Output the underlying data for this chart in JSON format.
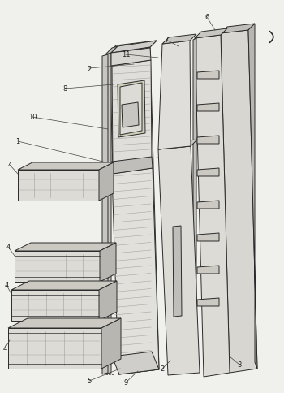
{
  "background_color": "#f0f0ec",
  "fig_width": 3.5,
  "fig_height": 4.85,
  "dpi": 100,
  "line_color": "#2a2a2a",
  "fill_light": "#e8e6e0",
  "fill_mid": "#d0ceca",
  "fill_dark": "#b8b6b0",
  "fill_side": "#c8c6c0"
}
